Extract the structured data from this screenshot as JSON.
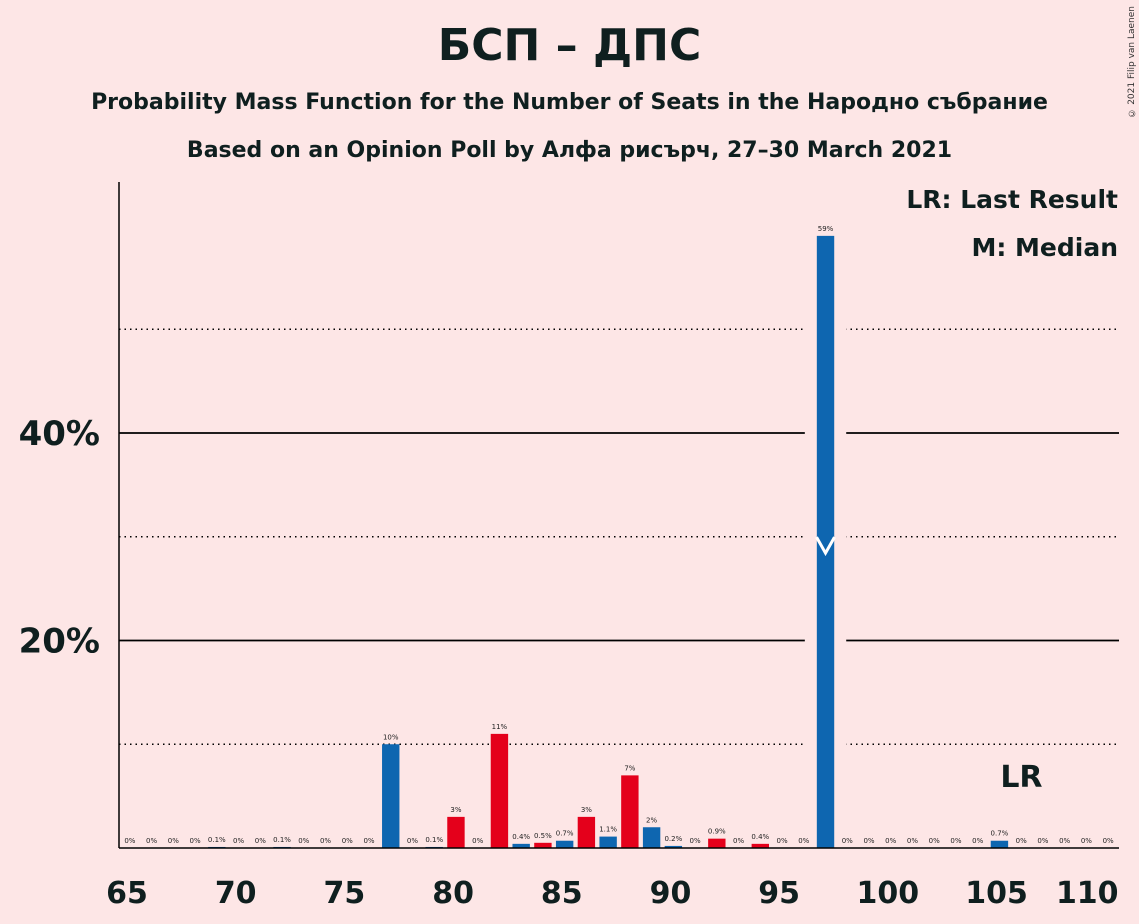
{
  "title": "БСП – ДПС",
  "subtitle1": "Probability Mass Function for the Number of Seats in the Народно събрание",
  "subtitle2": "Based on an Opinion Poll by Алфа рисърч, 27–30 March 2021",
  "copyright": "© 2021 Filip van Laenen",
  "legend": {
    "lr": "LR: Last Result",
    "median": "M: Median"
  },
  "colors": {
    "background": "#FDE6E6",
    "blue": "#0E66B0",
    "red": "#E4001B",
    "text": "#0f1f1f"
  },
  "chart_data": {
    "type": "bar",
    "xlim": [
      65,
      110
    ],
    "ylim": [
      0,
      64
    ],
    "x_ticks": [
      65,
      70,
      75,
      80,
      85,
      90,
      95,
      100,
      105,
      110
    ],
    "y_ticks_labeled": [
      {
        "value": 20,
        "label": "20%"
      },
      {
        "value": 40,
        "label": "40%"
      }
    ],
    "y_gridlines_solid": [
      20,
      40
    ],
    "y_gridlines_dotted": [
      10,
      30,
      50
    ],
    "median_seat": 97,
    "median_value": 29,
    "last_result_seat": 105,
    "last_result_label": "LR",
    "bars": [
      {
        "seat": 66,
        "value": 0,
        "label": "0%",
        "color": "blue"
      },
      {
        "seat": 67,
        "value": 0,
        "label": "0%",
        "color": "blue"
      },
      {
        "seat": 68,
        "value": 0,
        "label": "0%",
        "color": "blue"
      },
      {
        "seat": 69,
        "value": 0,
        "label": "0%",
        "color": "blue"
      },
      {
        "seat": 70,
        "value": 0.1,
        "label": "0.1%",
        "color": "blue"
      },
      {
        "seat": 71,
        "value": 0,
        "label": "0%",
        "color": "blue"
      },
      {
        "seat": 72,
        "value": 0,
        "label": "0%",
        "color": "blue"
      },
      {
        "seat": 73,
        "value": 0.1,
        "label": "0.1%",
        "color": "blue"
      },
      {
        "seat": 74,
        "value": 0,
        "label": "0%",
        "color": "blue"
      },
      {
        "seat": 75,
        "value": 0,
        "label": "0%",
        "color": "blue"
      },
      {
        "seat": 76,
        "value": 0,
        "label": "0%",
        "color": "blue"
      },
      {
        "seat": 77,
        "value": 0,
        "label": "0%",
        "color": "blue"
      },
      {
        "seat": 78,
        "value": 10,
        "label": "10%",
        "color": "blue"
      },
      {
        "seat": 79,
        "value": 0,
        "label": "0%",
        "color": "blue"
      },
      {
        "seat": 80,
        "value": 0.1,
        "label": "0.1%",
        "color": "blue"
      },
      {
        "seat": 81,
        "value": 3,
        "label": "3%",
        "color": "red"
      },
      {
        "seat": 82,
        "value": 0,
        "label": "0%",
        "color": "blue"
      },
      {
        "seat": 83,
        "value": 11,
        "label": "11%",
        "color": "red"
      },
      {
        "seat": 84,
        "value": 0.4,
        "label": "0.4%",
        "color": "blue"
      },
      {
        "seat": 85,
        "value": 0.5,
        "label": "0.5%",
        "color": "red"
      },
      {
        "seat": 86,
        "value": 0.7,
        "label": "0.7%",
        "color": "blue"
      },
      {
        "seat": 87,
        "value": 3,
        "label": "3%",
        "color": "red"
      },
      {
        "seat": 88,
        "value": 1.1,
        "label": "1.1%",
        "color": "blue"
      },
      {
        "seat": 89,
        "value": 7,
        "label": "7%",
        "color": "red"
      },
      {
        "seat": 90,
        "value": 2,
        "label": "2%",
        "color": "blue"
      },
      {
        "seat": 91,
        "value": 0.2,
        "label": "0.2%",
        "color": "blue"
      },
      {
        "seat": 92,
        "value": 0,
        "label": "0%",
        "color": "blue"
      },
      {
        "seat": 93,
        "value": 0.9,
        "label": "0.9%",
        "color": "red"
      },
      {
        "seat": 94,
        "value": 0,
        "label": "0%",
        "color": "blue"
      },
      {
        "seat": 95,
        "value": 0.4,
        "label": "0.4%",
        "color": "red"
      },
      {
        "seat": 96,
        "value": 0,
        "label": "0%",
        "color": "blue"
      },
      {
        "seat": 97,
        "value": 0,
        "label": "0%",
        "color": "blue"
      },
      {
        "seat": 98,
        "value": 59,
        "label": "59%",
        "color": "blue"
      },
      {
        "seat": 99,
        "value": 0,
        "label": "0%",
        "color": "blue"
      },
      {
        "seat": 100,
        "value": 0,
        "label": "0%",
        "color": "blue"
      },
      {
        "seat": 101,
        "value": 0,
        "label": "0%",
        "color": "blue"
      },
      {
        "seat": 102,
        "value": 0,
        "label": "0%",
        "color": "blue"
      },
      {
        "seat": 103,
        "value": 0,
        "label": "0%",
        "color": "blue"
      },
      {
        "seat": 104,
        "value": 0,
        "label": "0%",
        "color": "blue"
      },
      {
        "seat": 105,
        "value": 0,
        "label": "0%",
        "color": "blue"
      },
      {
        "seat": 106,
        "value": 0.7,
        "label": "0.7%",
        "color": "blue"
      },
      {
        "seat": 107,
        "value": 0,
        "label": "0%",
        "color": "blue"
      },
      {
        "seat": 108,
        "value": 0,
        "label": "0%",
        "color": "blue"
      },
      {
        "seat": 109,
        "value": 0,
        "label": "0%",
        "color": "blue"
      },
      {
        "seat": 110,
        "value": 0,
        "label": "0%",
        "color": "blue"
      },
      {
        "seat": 111,
        "value": 0,
        "label": "0%",
        "color": "blue"
      }
    ]
  }
}
